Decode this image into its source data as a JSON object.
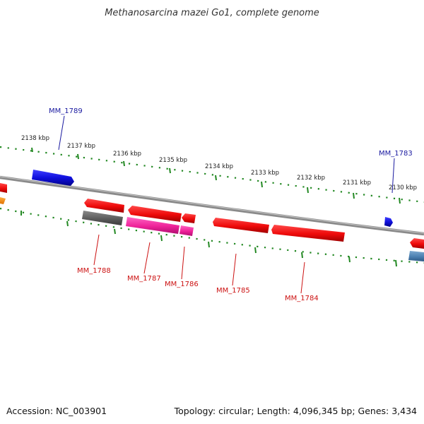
{
  "title": "Methanosarcina mazei Go1, complete genome",
  "accession": "Accession: NC_003901",
  "summary": "Topology: circular; Length: 4,096,345 bp; Genes: 3,434",
  "ticks": [
    "2138 kbp",
    "2137 kbp",
    "2136 kbp",
    "2135 kbp",
    "2134 kbp",
    "2133 kbp",
    "2132 kbp",
    "2131 kbp",
    "2130 kbp"
  ],
  "genes_forward": [
    "MM_1789",
    "MM_1783"
  ],
  "genes_reverse": [
    "MM_1788",
    "MM_1787",
    "MM_1786",
    "MM_1785",
    "MM_1784"
  ],
  "colors": {
    "forward": "#1111dd",
    "reverse": "#ee1111",
    "pseudo": "#666666",
    "rna": "#ee2299",
    "other": "#4477aa",
    "orange": "#ff8800",
    "ticks": "#228822",
    "backbone": "#888888"
  }
}
